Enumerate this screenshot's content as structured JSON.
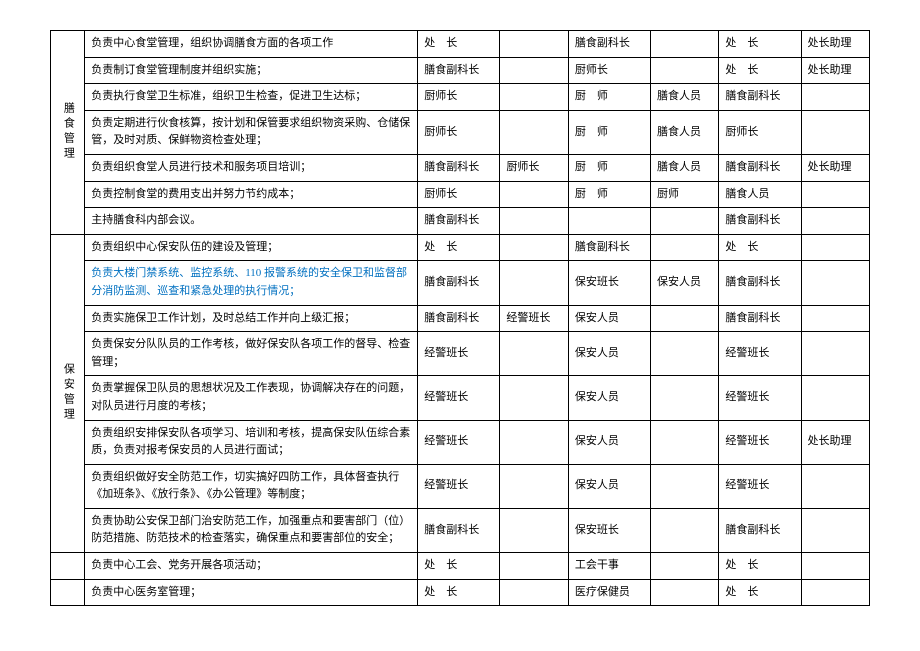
{
  "sections": [
    {
      "label": "膳食管理"
    },
    {
      "label": "保安管理"
    }
  ],
  "rows": {
    "r0": {
      "desc": "负责中心食堂管理，组织协调膳食方面的各项工作",
      "c2": "处　长",
      "c3": "",
      "c4": "膳食副科长",
      "c5": "",
      "c6": "处　长",
      "c7": "处长助理"
    },
    "r1": {
      "desc": "负责制订食堂管理制度并组织实施；",
      "c2": "膳食副科长",
      "c3": "",
      "c4": "厨师长",
      "c5": "",
      "c6": "处　长",
      "c7": "处长助理"
    },
    "r2": {
      "desc": "负责执行食堂卫生标准，组织卫生检查，促进卫生达标；",
      "c2": "厨师长",
      "c3": "",
      "c4": "厨　师",
      "c5": "膳食人员",
      "c6": "膳食副科长",
      "c7": ""
    },
    "r3": {
      "desc": "负责定期进行伙食核算，按计划和保管要求组织物资采购、仓储保管，及时对质、保鲜物资检查处理；",
      "c2": "厨师长",
      "c3": "",
      "c4": "厨　师",
      "c5": "膳食人员",
      "c6": "厨师长",
      "c7": ""
    },
    "r4": {
      "desc": "负责组织食堂人员进行技术和服务项目培训；",
      "c2": "膳食副科长",
      "c3": "厨师长",
      "c4": "厨　师",
      "c5": "膳食人员",
      "c6": "膳食副科长",
      "c7": "处长助理"
    },
    "r5": {
      "desc": "负责控制食堂的费用支出并努力节约成本；",
      "c2": "厨师长",
      "c3": "",
      "c4": "厨　师",
      "c5": "厨师",
      "c6": "膳食人员",
      "c7": ""
    },
    "r6": {
      "desc": "主持膳食科内部会议。",
      "c2": "膳食副科长",
      "c3": "",
      "c4": "",
      "c5": "",
      "c6": "膳食副科长",
      "c7": ""
    },
    "r7": {
      "desc": "负责组织中心保安队伍的建设及管理；",
      "c2": "处　长",
      "c3": "",
      "c4": "膳食副科长",
      "c5": "",
      "c6": "处　长",
      "c7": ""
    },
    "r8": {
      "desc": "负责大楼门禁系统、监控系统、110 报警系统的安全保卫和监督部分消防监测、巡查和紧急处理的执行情况；",
      "c2": "膳食副科长",
      "c3": "",
      "c4": "保安班长",
      "c5": "保安人员",
      "c6": "膳食副科长",
      "c7": ""
    },
    "r9": {
      "desc": "负责实施保卫工作计划，及时总结工作并向上级汇报；",
      "c2": "膳食副科长",
      "c3": "经警班长",
      "c4": "保安人员",
      "c5": "",
      "c6": "膳食副科长",
      "c7": ""
    },
    "r10": {
      "desc": "负责保安分队队员的工作考核，做好保安队各项工作的督导、检查管理；",
      "c2": "经警班长",
      "c3": "",
      "c4": "保安人员",
      "c5": "",
      "c6": "经警班长",
      "c7": ""
    },
    "r11": {
      "desc": "负责掌握保卫队员的思想状况及工作表现，协调解决存在的问题，对队员进行月度的考核；",
      "c2": "经警班长",
      "c3": "",
      "c4": "保安人员",
      "c5": "",
      "c6": "经警班长",
      "c7": ""
    },
    "r12": {
      "desc": "负责组织安排保安队各项学习、培训和考核，提高保安队伍综合素质，负责对报考保安员的人员进行面试；",
      "c2": "经警班长",
      "c3": "",
      "c4": "保安人员",
      "c5": "",
      "c6": "经警班长",
      "c7": "处长助理"
    },
    "r13": {
      "desc": "负责组织做好安全防范工作，切实搞好四防工作，具体督查执行《加班条》、《放行条》、《办公管理》等制度；",
      "c2": "经警班长",
      "c3": "",
      "c4": "保安人员",
      "c5": "",
      "c6": "经警班长",
      "c7": ""
    },
    "r14": {
      "desc": "负责协助公安保卫部门治安防范工作，加强重点和要害部门（位）防范措施、防范技术的检查落实，确保重点和要害部位的安全；",
      "c2": "膳食副科长",
      "c3": "",
      "c4": "保安班长",
      "c5": "",
      "c6": "膳食副科长",
      "c7": ""
    },
    "r15": {
      "desc": "负责中心工会、党务开展各项活动；",
      "c2": "处　长",
      "c3": "",
      "c4": "工会干事",
      "c5": "",
      "c6": "处　长",
      "c7": ""
    },
    "r16": {
      "desc": "负责中心医务室管理；",
      "c2": "处　长",
      "c3": "",
      "c4": "医疗保健员",
      "c5": "",
      "c6": "处　长",
      "c7": ""
    }
  },
  "style": {
    "font_size": 11,
    "border_color": "#000000",
    "highlight_color": "#0070c0",
    "background": "#ffffff"
  }
}
